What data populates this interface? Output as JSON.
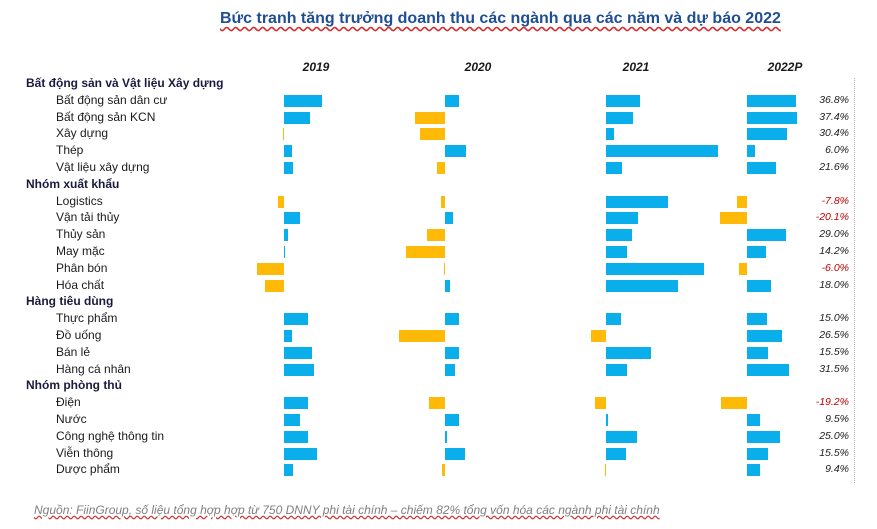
{
  "chart_data": {
    "type": "bar",
    "title": "Bức tranh tăng trưởng doanh thu các ngành qua các năm và dự báo 2022",
    "years": [
      "2019",
      "2020",
      "2021",
      "2022P"
    ],
    "groups": [
      {
        "name": "Bất động sản và Vật liệu Xây dựng",
        "items": [
          {
            "name": "Bất động sản dân cư",
            "values": [
              14.5,
              5.3,
              12.7,
              36.8
            ],
            "label_2022": "36.8%"
          },
          {
            "name": "Bất động sản KCN",
            "values": [
              9.7,
              -11.3,
              10.3,
              37.4
            ],
            "label_2022": "37.4%"
          },
          {
            "name": "Xây dựng",
            "values": [
              -0.4,
              -9.5,
              3.0,
              30.4
            ],
            "label_2022": "30.4%"
          },
          {
            "name": "Thép",
            "values": [
              3.0,
              8.0,
              42.4,
              6.0
            ],
            "label_2022": "6.0%"
          },
          {
            "name": "Vật liệu xây dựng",
            "values": [
              3.3,
              -3.0,
              6.1,
              21.6
            ],
            "label_2022": "21.6%"
          }
        ]
      },
      {
        "name": "Nhóm xuất khẩu",
        "items": [
          {
            "name": "Logistics",
            "values": [
              -2.4,
              -1.5,
              23.3,
              -7.8
            ],
            "label_2022": "-7.8%"
          },
          {
            "name": "Vận tải thủy",
            "values": [
              5.9,
              3.0,
              12.1,
              -20.1
            ],
            "label_2022": "-20.1%"
          },
          {
            "name": "Thủy sản",
            "values": [
              1.5,
              -6.8,
              9.7,
              29.0
            ],
            "label_2022": "29.0%"
          },
          {
            "name": "May mặc",
            "values": [
              0.4,
              -14.8,
              7.9,
              14.2
            ],
            "label_2022": "14.2%"
          },
          {
            "name": "Phân bón",
            "values": [
              -10.2,
              -0.4,
              37.0,
              -6.0
            ],
            "label_2022": "-6.0%"
          },
          {
            "name": "Hóa chất",
            "values": [
              -7.0,
              1.9,
              27.3,
              18.0
            ],
            "label_2022": "18.0%"
          }
        ]
      },
      {
        "name": "Hàng tiêu dùng",
        "items": [
          {
            "name": "Thực phẩm",
            "values": [
              8.9,
              5.3,
              5.8,
              15.0
            ],
            "label_2022": "15.0%"
          },
          {
            "name": "Đồ uống",
            "values": [
              3.0,
              -17.3,
              -5.8,
              26.5
            ],
            "label_2022": "26.5%"
          },
          {
            "name": "Bán lẻ",
            "values": [
              10.4,
              5.3,
              17.0,
              15.5
            ],
            "label_2022": "15.5%"
          },
          {
            "name": "Hàng cá nhân",
            "values": [
              11.5,
              3.8,
              8.0,
              31.5
            ],
            "label_2022": "31.5%"
          }
        ]
      },
      {
        "name": "Nhóm phòng thủ",
        "items": [
          {
            "name": "Điện",
            "values": [
              8.9,
              -6.0,
              -4.2,
              -19.2
            ],
            "label_2022": "-19.2%"
          },
          {
            "name": "Nước",
            "values": [
              6.0,
              5.3,
              0.8,
              9.5
            ],
            "label_2022": "9.5%"
          },
          {
            "name": "Công nghệ thông tin",
            "values": [
              8.9,
              0.8,
              11.7,
              25.0
            ],
            "label_2022": "25.0%"
          },
          {
            "name": "Viễn thông",
            "values": [
              12.3,
              7.5,
              7.4,
              15.5
            ],
            "label_2022": "15.5%"
          },
          {
            "name": "Dược phẩm",
            "values": [
              3.3,
              -1.1,
              -0.4,
              9.4
            ],
            "label_2022": "9.4%"
          }
        ]
      }
    ]
  },
  "source": "Nguồn: FiinGroup, số liệu tổng hợp hợp từ 750 DNNY phi tài chính – chiếm 82% tổng vốn hóa các ngành phi tài chính"
}
